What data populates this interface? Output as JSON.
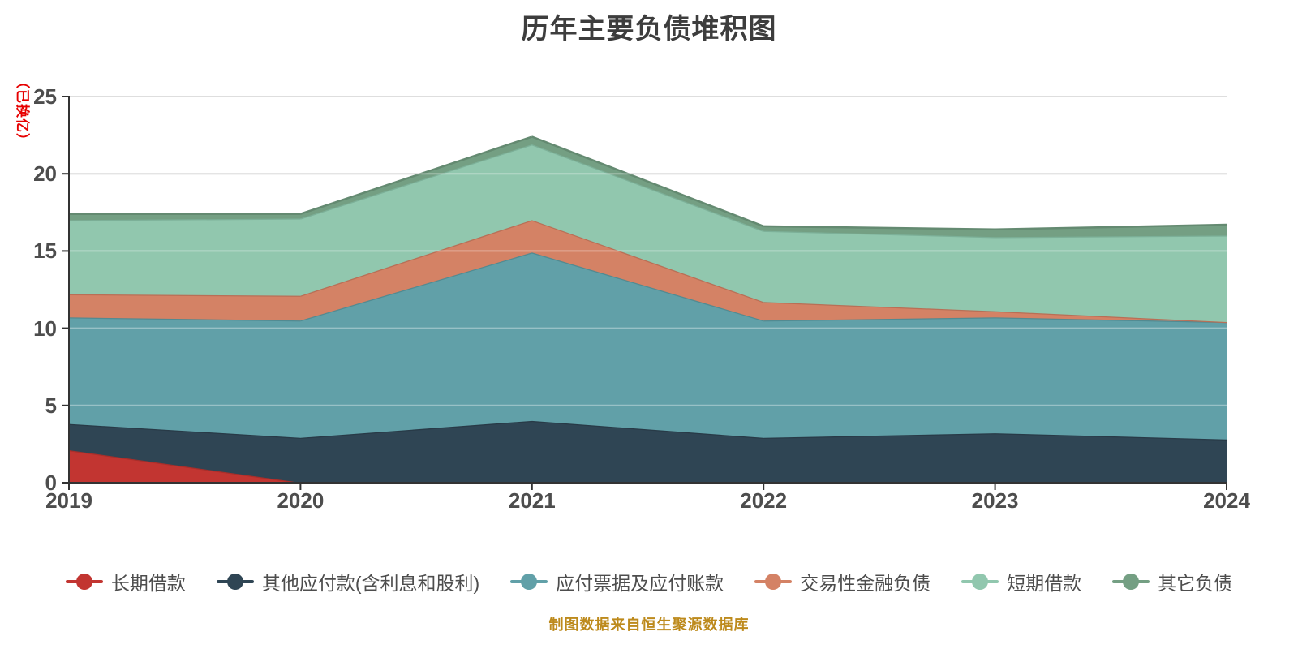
{
  "title": "历年主要负债堆积图",
  "y_axis_name": "（已换亿）",
  "footer": "制图数据来自恒生聚源数据库",
  "colors": {
    "background": "#ffffff",
    "title": "#3d3d3d",
    "axis_name": "#e60000",
    "axis_label": "#4d4d4d",
    "axis_line": "#333333",
    "gridline": "#cccccc",
    "legend_label": "#4d4d4d",
    "footer": "#bd8a1c"
  },
  "chart_data": {
    "type": "area",
    "stacked": true,
    "title": "历年主要负债堆积图",
    "xlabel": "",
    "ylabel": "（已换亿）",
    "categories": [
      "2019",
      "2020",
      "2021",
      "2022",
      "2023",
      "2024"
    ],
    "series": [
      {
        "name": "长期借款",
        "color": "#c23531",
        "line": "#a82e2a",
        "values": [
          2.1,
          0,
          0,
          0,
          0,
          0
        ]
      },
      {
        "name": "其他应付款(含利息和股利)",
        "color": "#2f4554",
        "line": "#283a47",
        "values": [
          1.7,
          2.9,
          4.0,
          2.9,
          3.2,
          2.8
        ]
      },
      {
        "name": "应付票据及应付账款",
        "color": "#61a0a8",
        "line": "#528a91",
        "values": [
          6.9,
          7.6,
          10.9,
          7.6,
          7.5,
          7.6
        ]
      },
      {
        "name": "交易性金融负债",
        "color": "#d48265",
        "line": "#b86f56",
        "values": [
          1.5,
          1.6,
          2.1,
          1.2,
          0.4,
          0
        ]
      },
      {
        "name": "短期借款",
        "color": "#91c7ae",
        "line": "#7cb098",
        "values": [
          4.8,
          5.0,
          4.9,
          4.6,
          4.8,
          5.6
        ]
      },
      {
        "name": "其它负债",
        "color": "#749f83",
        "line": "#648a71",
        "values": [
          0.4,
          0.3,
          0.5,
          0.3,
          0.5,
          0.7
        ]
      }
    ],
    "stack_totals": [
      17.4,
      17.4,
      22.4,
      16.6,
      16.4,
      16.7
    ],
    "ylim": [
      0,
      25
    ],
    "yticks": [
      0,
      5,
      10,
      15,
      20,
      25
    ],
    "grid": true,
    "legend_position": "bottom"
  }
}
